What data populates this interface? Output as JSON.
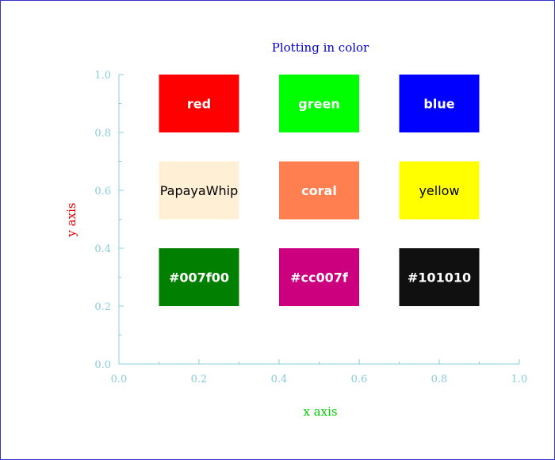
{
  "chart_data": {
    "type": "table",
    "title": "Plotting in color",
    "xlabel": "x axis",
    "ylabel": "y axis",
    "xlim": [
      0,
      1
    ],
    "ylim": [
      0,
      1
    ],
    "xticks": [
      "0.0",
      "0.2",
      "0.4",
      "0.6",
      "0.8",
      "1.0"
    ],
    "yticks": [
      "0.0",
      "0.2",
      "0.4",
      "0.6",
      "0.8",
      "1.0"
    ],
    "grid": false,
    "boxes": [
      {
        "label": "red",
        "fill": "#ff0000",
        "text_color": "#ffffff",
        "bold": true,
        "x": [
          0.1,
          0.3
        ],
        "y": [
          0.8,
          1.0
        ]
      },
      {
        "label": "green",
        "fill": "#00ff00",
        "text_color": "#ffffff",
        "bold": true,
        "x": [
          0.4,
          0.6
        ],
        "y": [
          0.8,
          1.0
        ]
      },
      {
        "label": "blue",
        "fill": "#0000ff",
        "text_color": "#ffffff",
        "bold": true,
        "x": [
          0.7,
          0.9
        ],
        "y": [
          0.8,
          1.0
        ]
      },
      {
        "label": "PapayaWhip",
        "fill": "#ffefd5",
        "text_color": "#000000",
        "bold": false,
        "x": [
          0.1,
          0.3
        ],
        "y": [
          0.5,
          0.7
        ]
      },
      {
        "label": "coral",
        "fill": "#ff7f50",
        "text_color": "#ffffff",
        "bold": true,
        "x": [
          0.4,
          0.6
        ],
        "y": [
          0.5,
          0.7
        ]
      },
      {
        "label": "yellow",
        "fill": "#ffff00",
        "text_color": "#000000",
        "bold": false,
        "x": [
          0.7,
          0.9
        ],
        "y": [
          0.5,
          0.7
        ]
      },
      {
        "label": "#007f00",
        "fill": "#007f00",
        "text_color": "#ffffff",
        "bold": true,
        "x": [
          0.1,
          0.3
        ],
        "y": [
          0.2,
          0.4
        ]
      },
      {
        "label": "#cc007f",
        "fill": "#cc007f",
        "text_color": "#ffffff",
        "bold": true,
        "x": [
          0.4,
          0.6
        ],
        "y": [
          0.2,
          0.4
        ]
      },
      {
        "label": "#101010",
        "fill": "#101010",
        "text_color": "#ffffff",
        "bold": true,
        "x": [
          0.7,
          0.9
        ],
        "y": [
          0.2,
          0.4
        ]
      }
    ],
    "colors": {
      "title": "#0000cc",
      "xlabel": "#00cc00",
      "ylabel": "#ee0000",
      "axis": "#88ccdd",
      "frame": "#3333cc"
    }
  }
}
